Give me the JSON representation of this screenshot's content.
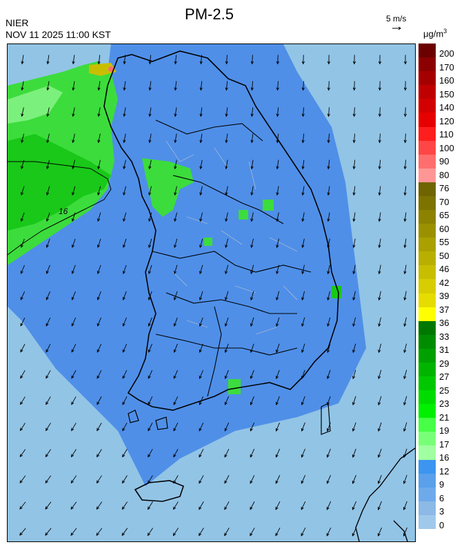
{
  "header": {
    "agency": "NIER",
    "timestamp": "NOV 11 2025 11:00 KST",
    "title": "PM-2.5",
    "wind_scale_label": "5 m/s",
    "units": "μg/m",
    "units_superscript": "3"
  },
  "map": {
    "contour_label": "16",
    "wind_direction": "mostly southward / south-westward flow",
    "colors": {
      "background_pm": "#92c4e6",
      "low_pm": "#4f8fe8",
      "green_high": "#19c819",
      "green_mid": "#3cdc3c",
      "green_light": "#7cf07c",
      "coastline": "#000000",
      "district_lines": "#c8c8c8"
    }
  },
  "colorbar": {
    "labels": [
      "200",
      "170",
      "160",
      "150",
      "140",
      "120",
      "110",
      "100",
      "90",
      "80",
      "76",
      "70",
      "65",
      "60",
      "55",
      "50",
      "46",
      "42",
      "39",
      "37",
      "36",
      "33",
      "31",
      "29",
      "27",
      "25",
      "23",
      "21",
      "19",
      "17",
      "16",
      "12",
      "9",
      "6",
      "3",
      "0"
    ],
    "segments": [
      {
        "color": "#6b0000"
      },
      {
        "color": "#8b0000"
      },
      {
        "color": "#a50000"
      },
      {
        "color": "#be0000"
      },
      {
        "color": "#d20000"
      },
      {
        "color": "#e60000"
      },
      {
        "color": "#ff1e1e"
      },
      {
        "color": "#ff4646"
      },
      {
        "color": "#ff6e6e"
      },
      {
        "color": "#ff9696"
      },
      {
        "color": "#6e6400"
      },
      {
        "color": "#7d7300"
      },
      {
        "color": "#8c8200"
      },
      {
        "color": "#9b9100"
      },
      {
        "color": "#aaa000"
      },
      {
        "color": "#b9af00"
      },
      {
        "color": "#c8be00"
      },
      {
        "color": "#d7cd00"
      },
      {
        "color": "#e6dc00"
      },
      {
        "color": "#ffff00"
      },
      {
        "color": "#007800"
      },
      {
        "color": "#008c00"
      },
      {
        "color": "#00a000"
      },
      {
        "color": "#00b400"
      },
      {
        "color": "#00c800"
      },
      {
        "color": "#00dc00"
      },
      {
        "color": "#00f000"
      },
      {
        "color": "#46ff46"
      },
      {
        "color": "#78ff78"
      },
      {
        "color": "#a0ffa0"
      },
      {
        "color": "#3c96f0"
      },
      {
        "color": "#5aa0eb"
      },
      {
        "color": "#6eaaeb"
      },
      {
        "color": "#8cb9e6"
      },
      {
        "color": "#a0c8eb"
      }
    ]
  }
}
